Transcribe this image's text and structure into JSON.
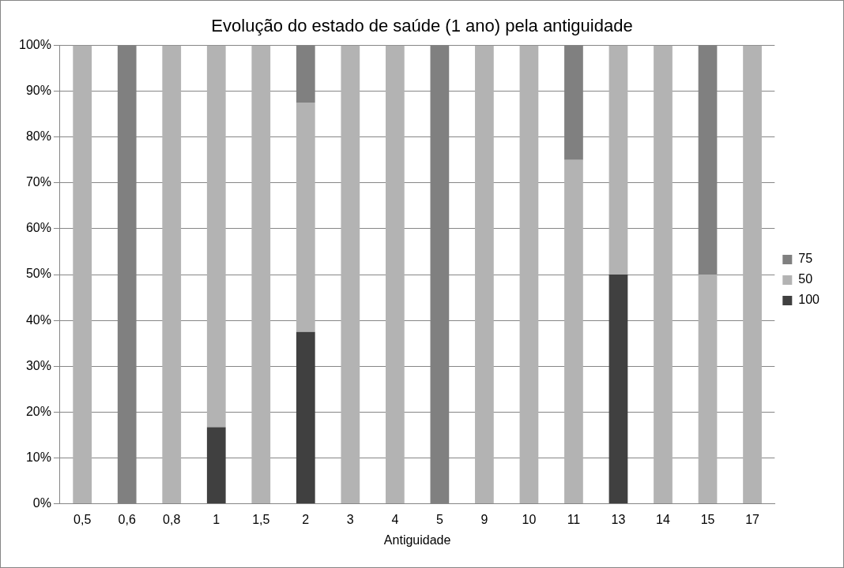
{
  "chart_data": {
    "type": "bar",
    "title": "Evolução do estado de saúde (1 ano) pela antiguidade",
    "xlabel": "Antiguidade",
    "categories": [
      "0,5",
      "0,6",
      "0,8",
      "1",
      "1,5",
      "2",
      "3",
      "4",
      "5",
      "9",
      "10",
      "11",
      "13",
      "14",
      "15",
      "17"
    ],
    "stacked": true,
    "series": [
      {
        "name": "100",
        "color": "#404040",
        "values": [
          0,
          0,
          0,
          16.7,
          0,
          37.5,
          0,
          0,
          0,
          0,
          0,
          0,
          50,
          0,
          0,
          0
        ]
      },
      {
        "name": "50",
        "color": "#b3b3b3",
        "values": [
          100,
          0,
          100,
          83.3,
          100,
          50,
          100,
          100,
          0,
          100,
          100,
          75,
          50,
          100,
          50,
          100
        ]
      },
      {
        "name": "75",
        "color": "#808080",
        "values": [
          0,
          100,
          0,
          0,
          0,
          12.5,
          0,
          0,
          100,
          0,
          0,
          25,
          0,
          0,
          50,
          0
        ]
      }
    ],
    "ylim": [
      0,
      100
    ],
    "yticks": [
      {
        "value": 0,
        "label": "0%"
      },
      {
        "value": 10,
        "label": "10%"
      },
      {
        "value": 20,
        "label": "20%"
      },
      {
        "value": 30,
        "label": "30%"
      },
      {
        "value": 40,
        "label": "40%"
      },
      {
        "value": 50,
        "label": "50%"
      },
      {
        "value": 60,
        "label": "60%"
      },
      {
        "value": 70,
        "label": "70%"
      },
      {
        "value": 80,
        "label": "80%"
      },
      {
        "value": 90,
        "label": "90%"
      },
      {
        "value": 100,
        "label": "100%"
      }
    ],
    "grid": "y",
    "legend": "right"
  }
}
